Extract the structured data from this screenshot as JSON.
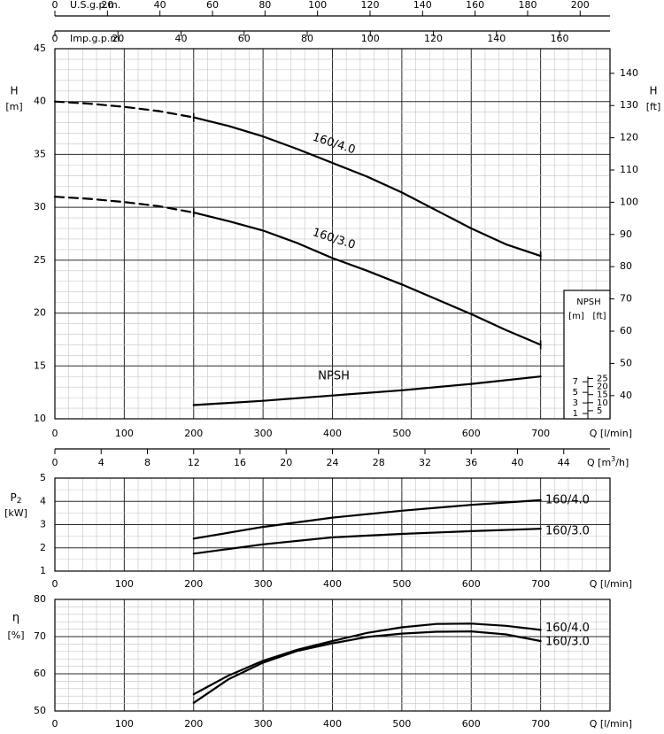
{
  "chart_data": [
    {
      "type": "line",
      "name_role": "head-curves",
      "xlabel": "Q [l/min]",
      "x_ticks": [
        0,
        100,
        200,
        300,
        400,
        500,
        600,
        700
      ],
      "xlim": [
        0,
        800
      ],
      "ylabel_left": {
        "symbol": "H",
        "unit": "[m]"
      },
      "ylim": [
        10,
        45
      ],
      "y_ticks": [
        10,
        15,
        20,
        25,
        30,
        35,
        40,
        45
      ],
      "ylabel_right": {
        "symbol": "H",
        "unit": "[ft]"
      },
      "y_ticks_right": [
        40,
        50,
        60,
        70,
        80,
        90,
        100,
        110,
        120,
        130,
        140
      ],
      "ft_per_m": 3.28084,
      "top_axis_usgpm": {
        "label": "U.S.g.p.m.",
        "ticks": [
          0,
          20,
          40,
          60,
          80,
          100,
          120,
          140,
          160,
          180,
          200
        ],
        "lpm_per_unit": 3.785
      },
      "top_axis_impgpm": {
        "label": "Imp.g.p.m.",
        "ticks": [
          0,
          20,
          40,
          60,
          80,
          100,
          120,
          140,
          160
        ],
        "lpm_per_unit": 4.546
      },
      "bottom_axis_m3h": {
        "label": "Q",
        "unit_pre": "[m",
        "unit_sup": "3",
        "unit_post": "/h]",
        "ticks": [
          0,
          4,
          8,
          12,
          16,
          20,
          24,
          28,
          32,
          36,
          40,
          44
        ],
        "lpm_per_unit": 16.6667
      },
      "series": [
        {
          "name": "160/4.0",
          "x": [
            200,
            250,
            300,
            350,
            400,
            450,
            500,
            550,
            600,
            650,
            700
          ],
          "y": [
            38.5,
            37.7,
            36.7,
            35.5,
            34.2,
            32.9,
            31.4,
            29.7,
            28.0,
            26.5,
            25.4
          ],
          "dashed_x": [
            0,
            50,
            100,
            150,
            200
          ],
          "dashed_y": [
            40.0,
            39.8,
            39.5,
            39.1,
            38.5
          ]
        },
        {
          "name": "160/3.0",
          "x": [
            200,
            250,
            300,
            350,
            400,
            450,
            500,
            550,
            600,
            650,
            700
          ],
          "y": [
            29.5,
            28.7,
            27.8,
            26.6,
            25.2,
            24.0,
            22.7,
            21.3,
            19.9,
            18.4,
            17.0
          ],
          "dashed_x": [
            0,
            50,
            100,
            150,
            200
          ],
          "dashed_y": [
            31.0,
            30.8,
            30.5,
            30.1,
            29.5
          ]
        },
        {
          "name": "NPSH",
          "x": [
            200,
            300,
            400,
            500,
            600,
            700
          ],
          "y": [
            11.3,
            11.7,
            12.2,
            12.7,
            13.3,
            14.0
          ]
        }
      ],
      "npsh_inset": {
        "title": "NPSH",
        "unit_m": "[m]",
        "unit_ft": "[ft]",
        "ticks_m": [
          1,
          3,
          5,
          7
        ],
        "ticks_ft": [
          5,
          10,
          15,
          20,
          25
        ]
      }
    },
    {
      "type": "line",
      "name_role": "power-curves",
      "xlabel": "Q [l/min]",
      "x_ticks": [
        0,
        100,
        200,
        300,
        400,
        500,
        600,
        700
      ],
      "xlim": [
        0,
        800
      ],
      "ylabel": {
        "symbol": "P",
        "subscript": "2",
        "unit": "[kW]"
      },
      "ylim": [
        1,
        5
      ],
      "y_ticks": [
        1,
        2,
        3,
        4,
        5
      ],
      "series": [
        {
          "name": "160/4.0",
          "x": [
            200,
            300,
            400,
            500,
            600,
            700
          ],
          "y": [
            2.4,
            2.9,
            3.3,
            3.6,
            3.85,
            4.05
          ]
        },
        {
          "name": "160/3.0",
          "x": [
            200,
            300,
            400,
            500,
            600,
            700
          ],
          "y": [
            1.75,
            2.15,
            2.45,
            2.6,
            2.72,
            2.82
          ]
        }
      ]
    },
    {
      "type": "line",
      "name_role": "efficiency-curves",
      "xlabel": "Q [l/min]",
      "x_ticks": [
        0,
        100,
        200,
        300,
        400,
        500,
        600,
        700
      ],
      "xlim": [
        0,
        800
      ],
      "ylabel": {
        "symbol": "η",
        "unit": "[%]"
      },
      "ylim": [
        50,
        80
      ],
      "y_ticks": [
        50,
        60,
        70,
        80
      ],
      "series": [
        {
          "name": "160/4.0",
          "x": [
            200,
            250,
            300,
            350,
            400,
            450,
            500,
            550,
            600,
            650,
            700
          ],
          "y": [
            54.5,
            59.5,
            63.5,
            66.5,
            68.8,
            71.0,
            72.5,
            73.4,
            73.5,
            72.9,
            71.8
          ]
        },
        {
          "name": "160/3.0",
          "x": [
            200,
            250,
            300,
            350,
            400,
            450,
            500,
            550,
            600,
            650,
            700
          ],
          "y": [
            52.2,
            58.5,
            63.0,
            66.2,
            68.2,
            69.9,
            70.8,
            71.3,
            71.4,
            70.6,
            68.8
          ]
        }
      ]
    }
  ]
}
